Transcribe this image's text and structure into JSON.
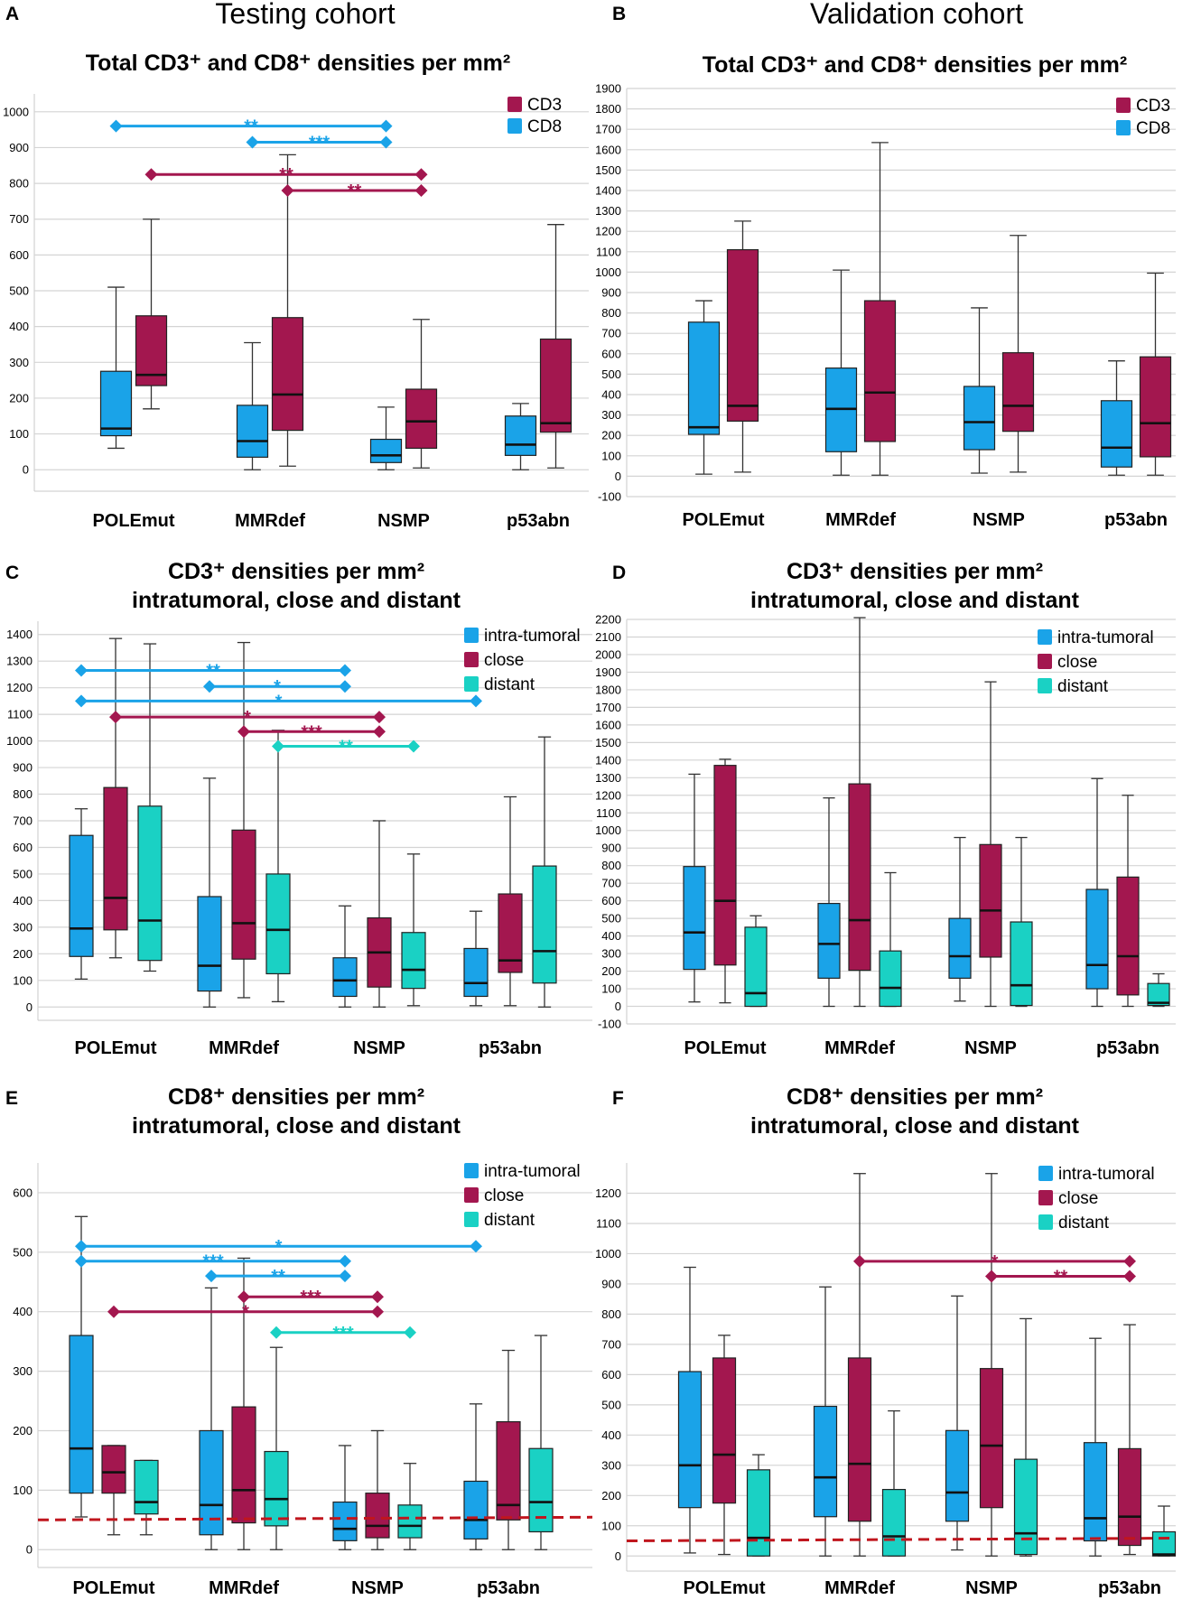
{
  "cohorts": {
    "testing": "Testing cohort",
    "validation": "Validation cohort"
  },
  "colors": {
    "intra": "#1aa3e8",
    "close": "#a3174f",
    "distant": "#1ad1c4",
    "cd3": "#a3174f",
    "cd8": "#1aa3e8",
    "reference_line": "#c0161e"
  },
  "chart_data": [
    {
      "panel": "A",
      "type": "box",
      "title_lines": [
        "Total CD3⁺ and CD8⁺ densities per mm²"
      ],
      "categories": [
        "POLEmut",
        "MMRdef",
        "NSMP",
        "p53abn"
      ],
      "ylim": [
        -60,
        1050
      ],
      "yticks": [
        0,
        100,
        200,
        300,
        400,
        500,
        600,
        700,
        800,
        900,
        1000
      ],
      "legend": [
        "CD3",
        "CD8"
      ],
      "series": [
        {
          "name": "CD8",
          "color_key": "cd8",
          "boxes": [
            {
              "min": 60,
              "q1": 95,
              "median": 115,
              "q3": 275,
              "max": 510
            },
            {
              "min": 0,
              "q1": 35,
              "median": 80,
              "q3": 180,
              "max": 355
            },
            {
              "min": 0,
              "q1": 20,
              "median": 40,
              "q3": 85,
              "max": 175
            },
            {
              "min": 0,
              "q1": 40,
              "median": 70,
              "q3": 150,
              "max": 185
            }
          ]
        },
        {
          "name": "CD3",
          "color_key": "cd3",
          "boxes": [
            {
              "min": 170,
              "q1": 235,
              "median": 265,
              "q3": 430,
              "max": 700
            },
            {
              "min": 10,
              "q1": 110,
              "median": 210,
              "q3": 425,
              "max": 880
            },
            {
              "min": 5,
              "q1": 60,
              "median": 135,
              "q3": 225,
              "max": 420
            },
            {
              "min": 5,
              "q1": 105,
              "median": 130,
              "q3": 365,
              "max": 685
            }
          ]
        }
      ],
      "significance": [
        {
          "from_group": 0,
          "from_series": 0,
          "to_group": 2,
          "to_series": 0,
          "y": 960,
          "label": "**",
          "color_key": "cd8"
        },
        {
          "from_group": 1,
          "from_series": 0,
          "to_group": 2,
          "to_series": 0,
          "y": 915,
          "label": "***",
          "color_key": "cd8"
        },
        {
          "from_group": 0,
          "from_series": 1,
          "to_group": 2,
          "to_series": 1,
          "y": 825,
          "label": "**",
          "color_key": "cd3"
        },
        {
          "from_group": 1,
          "from_series": 1,
          "to_group": 2,
          "to_series": 1,
          "y": 780,
          "label": "**",
          "color_key": "cd3"
        }
      ]
    },
    {
      "panel": "B",
      "type": "box",
      "title_lines": [
        "Total CD3⁺ and CD8⁺ densities per mm²"
      ],
      "categories": [
        "POLEmut",
        "MMRdef",
        "NSMP",
        "p53abn"
      ],
      "ylim": [
        -100,
        1900
      ],
      "yticks": [
        -100,
        0,
        100,
        200,
        300,
        400,
        500,
        600,
        700,
        800,
        900,
        1000,
        1100,
        1200,
        1300,
        1400,
        1500,
        1600,
        1700,
        1800,
        1900
      ],
      "legend": [
        "CD3",
        "CD8"
      ],
      "series": [
        {
          "name": "CD8",
          "color_key": "cd8",
          "boxes": [
            {
              "min": 10,
              "q1": 205,
              "median": 240,
              "q3": 755,
              "max": 860
            },
            {
              "min": 5,
              "q1": 120,
              "median": 330,
              "q3": 530,
              "max": 1010
            },
            {
              "min": 15,
              "q1": 130,
              "median": 265,
              "q3": 440,
              "max": 825
            },
            {
              "min": 5,
              "q1": 45,
              "median": 140,
              "q3": 370,
              "max": 565
            }
          ]
        },
        {
          "name": "CD3",
          "color_key": "cd3",
          "boxes": [
            {
              "min": 20,
              "q1": 270,
              "median": 345,
              "q3": 1110,
              "max": 1250
            },
            {
              "min": 5,
              "q1": 170,
              "median": 410,
              "q3": 860,
              "max": 1635
            },
            {
              "min": 20,
              "q1": 220,
              "median": 345,
              "q3": 605,
              "max": 1180
            },
            {
              "min": 5,
              "q1": 95,
              "median": 260,
              "q3": 585,
              "max": 995
            }
          ]
        }
      ],
      "significance": []
    },
    {
      "panel": "C",
      "type": "box",
      "title_lines": [
        "CD3⁺ densities per mm²",
        "intratumoral, close and distant"
      ],
      "categories": [
        "POLEmut",
        "MMRdef",
        "NSMP",
        "p53abn"
      ],
      "ylim": [
        -50,
        1450
      ],
      "yticks": [
        0,
        100,
        200,
        300,
        400,
        500,
        600,
        700,
        800,
        900,
        1000,
        1100,
        1200,
        1300,
        1400
      ],
      "legend": [
        "intra-tumoral",
        "close",
        "distant"
      ],
      "series": [
        {
          "name": "intra-tumoral",
          "color_key": "intra",
          "boxes": [
            {
              "min": 105,
              "q1": 190,
              "median": 295,
              "q3": 645,
              "max": 745
            },
            {
              "min": 0,
              "q1": 60,
              "median": 155,
              "q3": 415,
              "max": 860
            },
            {
              "min": 0,
              "q1": 40,
              "median": 100,
              "q3": 185,
              "max": 380
            },
            {
              "min": 5,
              "q1": 40,
              "median": 90,
              "q3": 220,
              "max": 360
            }
          ]
        },
        {
          "name": "close",
          "color_key": "close",
          "boxes": [
            {
              "min": 185,
              "q1": 290,
              "median": 410,
              "q3": 825,
              "max": 1385
            },
            {
              "min": 35,
              "q1": 180,
              "median": 315,
              "q3": 665,
              "max": 1370
            },
            {
              "min": 0,
              "q1": 75,
              "median": 205,
              "q3": 335,
              "max": 700
            },
            {
              "min": 5,
              "q1": 130,
              "median": 175,
              "q3": 425,
              "max": 790
            }
          ]
        },
        {
          "name": "distant",
          "color_key": "distant",
          "boxes": [
            {
              "min": 135,
              "q1": 175,
              "median": 325,
              "q3": 755,
              "max": 1365
            },
            {
              "min": 20,
              "q1": 125,
              "median": 290,
              "q3": 500,
              "max": 1040
            },
            {
              "min": 5,
              "q1": 70,
              "median": 140,
              "q3": 280,
              "max": 575
            },
            {
              "min": 0,
              "q1": 90,
              "median": 210,
              "q3": 530,
              "max": 1015
            }
          ]
        }
      ],
      "significance": [
        {
          "from_group": 0,
          "from_series": 0,
          "to_group": 2,
          "to_series": 0,
          "y": 1265,
          "label": "**",
          "color_key": "intra"
        },
        {
          "from_group": 1,
          "from_series": 0,
          "to_group": 2,
          "to_series": 0,
          "y": 1205,
          "label": "*",
          "color_key": "intra"
        },
        {
          "from_group": 0,
          "from_series": 0,
          "to_group": 3,
          "to_series": 0,
          "y": 1150,
          "label": "*",
          "color_key": "intra"
        },
        {
          "from_group": 0,
          "from_series": 1,
          "to_group": 2,
          "to_series": 1,
          "y": 1090,
          "label": "*",
          "color_key": "close"
        },
        {
          "from_group": 1,
          "from_series": 1,
          "to_group": 2,
          "to_series": 1,
          "y": 1035,
          "label": "***",
          "color_key": "close"
        },
        {
          "from_group": 1,
          "from_series": 2,
          "to_group": 2,
          "to_series": 2,
          "y": 980,
          "label": "**",
          "color_key": "distant"
        }
      ]
    },
    {
      "panel": "D",
      "type": "box",
      "title_lines": [
        "CD3⁺ densities per mm²",
        "intratumoral, close and distant"
      ],
      "categories": [
        "POLEmut",
        "MMRdef",
        "NSMP",
        "p53abn"
      ],
      "ylim": [
        -100,
        2200
      ],
      "yticks": [
        -100,
        0,
        100,
        200,
        300,
        400,
        500,
        600,
        700,
        800,
        900,
        1000,
        1100,
        1200,
        1300,
        1400,
        1500,
        1600,
        1700,
        1800,
        1900,
        2000,
        2100,
        2200
      ],
      "legend": [
        "intra-tumoral",
        "close",
        "distant"
      ],
      "series": [
        {
          "name": "intra-tumoral",
          "color_key": "intra",
          "boxes": [
            {
              "min": 25,
              "q1": 210,
              "median": 420,
              "q3": 795,
              "max": 1320
            },
            {
              "min": 0,
              "q1": 160,
              "median": 355,
              "q3": 585,
              "max": 1185
            },
            {
              "min": 30,
              "q1": 160,
              "median": 285,
              "q3": 500,
              "max": 960
            },
            {
              "min": 0,
              "q1": 100,
              "median": 235,
              "q3": 665,
              "max": 1295
            }
          ]
        },
        {
          "name": "close",
          "color_key": "close",
          "boxes": [
            {
              "min": 20,
              "q1": 235,
              "median": 600,
              "q3": 1370,
              "max": 1405
            },
            {
              "min": 0,
              "q1": 205,
              "median": 490,
              "q3": 1265,
              "max": 2210
            },
            {
              "min": 0,
              "q1": 280,
              "median": 545,
              "q3": 920,
              "max": 1845
            },
            {
              "min": 0,
              "q1": 65,
              "median": 285,
              "q3": 735,
              "max": 1200
            }
          ]
        },
        {
          "name": "distant",
          "color_key": "distant",
          "boxes": [
            {
              "min": 0,
              "q1": 0,
              "median": 75,
              "q3": 450,
              "max": 515
            },
            {
              "min": 0,
              "q1": 0,
              "median": 105,
              "q3": 315,
              "max": 760
            },
            {
              "min": 0,
              "q1": 5,
              "median": 120,
              "q3": 480,
              "max": 960
            },
            {
              "min": 0,
              "q1": 5,
              "median": 20,
              "q3": 130,
              "max": 185
            }
          ]
        }
      ],
      "significance": []
    },
    {
      "panel": "E",
      "type": "box",
      "title_lines": [
        "CD8⁺ densities per mm²",
        "intratumoral, close and distant"
      ],
      "categories": [
        "POLEmut",
        "MMRdef",
        "NSMP",
        "p53abn"
      ],
      "ylim": [
        -30,
        650
      ],
      "yticks": [
        0,
        100,
        200,
        300,
        400,
        500,
        600
      ],
      "legend": [
        "intra-tumoral",
        "close",
        "distant"
      ],
      "reference_y": 50,
      "series": [
        {
          "name": "intra-tumoral",
          "color_key": "intra",
          "boxes": [
            {
              "min": 55,
              "q1": 95,
              "median": 170,
              "q3": 360,
              "max": 560
            },
            {
              "min": 0,
              "q1": 25,
              "median": 75,
              "q3": 200,
              "max": 440
            },
            {
              "min": 0,
              "q1": 15,
              "median": 35,
              "q3": 80,
              "max": 175
            },
            {
              "min": 0,
              "q1": 18,
              "median": 50,
              "q3": 115,
              "max": 245
            }
          ]
        },
        {
          "name": "close",
          "color_key": "close",
          "boxes": [
            {
              "min": 25,
              "q1": 95,
              "median": 130,
              "q3": 175,
              "max": 175
            },
            {
              "min": 0,
              "q1": 45,
              "median": 100,
              "q3": 240,
              "max": 490
            },
            {
              "min": 0,
              "q1": 20,
              "median": 40,
              "q3": 95,
              "max": 200
            },
            {
              "min": 0,
              "q1": 50,
              "median": 75,
              "q3": 215,
              "max": 335
            }
          ]
        },
        {
          "name": "distant",
          "color_key": "distant",
          "boxes": [
            {
              "min": 25,
              "q1": 60,
              "median": 80,
              "q3": 150,
              "max": 150
            },
            {
              "min": 0,
              "q1": 40,
              "median": 85,
              "q3": 165,
              "max": 340
            },
            {
              "min": 0,
              "q1": 20,
              "median": 40,
              "q3": 75,
              "max": 145
            },
            {
              "min": 0,
              "q1": 30,
              "median": 80,
              "q3": 170,
              "max": 360
            }
          ]
        }
      ],
      "significance": [
        {
          "from_group": 0,
          "from_series": 0,
          "to_group": 3,
          "to_series": 0,
          "y": 510,
          "label": "*",
          "color_key": "intra"
        },
        {
          "from_group": 0,
          "from_series": 0,
          "to_group": 2,
          "to_series": 0,
          "y": 485,
          "label": "***",
          "color_key": "intra"
        },
        {
          "from_group": 1,
          "from_series": 0,
          "to_group": 2,
          "to_series": 0,
          "y": 460,
          "label": "**",
          "color_key": "intra"
        },
        {
          "from_group": 1,
          "from_series": 1,
          "to_group": 2,
          "to_series": 1,
          "y": 425,
          "label": "***",
          "color_key": "close"
        },
        {
          "from_group": 0,
          "from_series": 1,
          "to_group": 2,
          "to_series": 1,
          "y": 400,
          "label": "*",
          "color_key": "close"
        },
        {
          "from_group": 1,
          "from_series": 2,
          "to_group": 2,
          "to_series": 2,
          "y": 365,
          "label": "***",
          "color_key": "distant"
        }
      ]
    },
    {
      "panel": "F",
      "type": "box",
      "title_lines": [
        "CD8⁺ densities per mm²",
        "intratumoral, close and distant"
      ],
      "categories": [
        "POLEmut",
        "MMRdef",
        "NSMP",
        "p53abn"
      ],
      "ylim": [
        -50,
        1300
      ],
      "yticks": [
        0,
        100,
        200,
        300,
        400,
        500,
        600,
        700,
        800,
        900,
        1000,
        1100,
        1200
      ],
      "legend": [
        "intra-tumoral",
        "close",
        "distant"
      ],
      "reference_y": 50,
      "series": [
        {
          "name": "intra-tumoral",
          "color_key": "intra",
          "boxes": [
            {
              "min": 10,
              "q1": 160,
              "median": 300,
              "q3": 610,
              "max": 955
            },
            {
              "min": 0,
              "q1": 130,
              "median": 260,
              "q3": 495,
              "max": 890
            },
            {
              "min": 20,
              "q1": 115,
              "median": 210,
              "q3": 415,
              "max": 860
            },
            {
              "min": 0,
              "q1": 50,
              "median": 125,
              "q3": 375,
              "max": 720
            }
          ]
        },
        {
          "name": "close",
          "color_key": "close",
          "boxes": [
            {
              "min": 5,
              "q1": 175,
              "median": 335,
              "q3": 655,
              "max": 730
            },
            {
              "min": 0,
              "q1": 115,
              "median": 305,
              "q3": 655,
              "max": 1265
            },
            {
              "min": 0,
              "q1": 160,
              "median": 365,
              "q3": 620,
              "max": 1265
            },
            {
              "min": 5,
              "q1": 35,
              "median": 130,
              "q3": 355,
              "max": 765
            }
          ]
        },
        {
          "name": "distant",
          "color_key": "distant",
          "boxes": [
            {
              "min": 0,
              "q1": 0,
              "median": 60,
              "q3": 285,
              "max": 335
            },
            {
              "min": 0,
              "q1": 0,
              "median": 65,
              "q3": 220,
              "max": 480
            },
            {
              "min": 0,
              "q1": 5,
              "median": 75,
              "q3": 320,
              "max": 785
            },
            {
              "min": 0,
              "q1": 0,
              "median": 5,
              "q3": 80,
              "max": 165
            }
          ]
        }
      ],
      "significance": [
        {
          "from_group": 1,
          "from_series": 1,
          "to_group": 3,
          "to_series": 1,
          "y": 975,
          "label": "*",
          "color_key": "close"
        },
        {
          "from_group": 2,
          "from_series": 1,
          "to_group": 3,
          "to_series": 1,
          "y": 925,
          "label": "**",
          "color_key": "close"
        }
      ]
    }
  ]
}
